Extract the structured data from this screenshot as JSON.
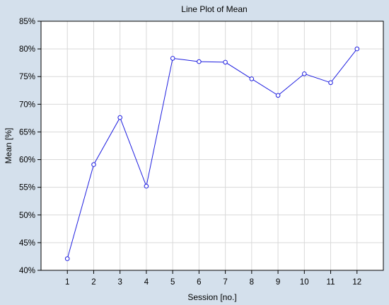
{
  "chart_data": {
    "type": "line",
    "title": "Line Plot of Mean",
    "xlabel": "Session [no.]",
    "ylabel": "Mean [%]",
    "x": [
      1,
      2,
      3,
      4,
      5,
      6,
      7,
      8,
      9,
      10,
      11,
      12
    ],
    "x_tick_labels": [
      "1",
      "2",
      "3",
      "4",
      "5",
      "6",
      "7",
      "8",
      "9",
      "10",
      "11",
      "12"
    ],
    "xlim": [
      0,
      13
    ],
    "ylim": [
      40,
      85
    ],
    "y_ticks": [
      40,
      45,
      50,
      55,
      60,
      65,
      70,
      75,
      80,
      85
    ],
    "y_tick_labels": [
      "40%",
      "45%",
      "50%",
      "55%",
      "60%",
      "65%",
      "70%",
      "75%",
      "80%",
      "85%"
    ],
    "series": [
      {
        "values": [
          42.1,
          59.1,
          67.6,
          55.2,
          78.3,
          77.7,
          77.6,
          74.6,
          71.6,
          75.5,
          73.9,
          80.0
        ]
      }
    ],
    "grid": true,
    "legend": "none"
  },
  "colors": {
    "background": "#d4e0ec",
    "plot_background": "#ffffff",
    "grid": "#d9d9d9",
    "line": "#1f1fe0",
    "axis": "#000000"
  }
}
